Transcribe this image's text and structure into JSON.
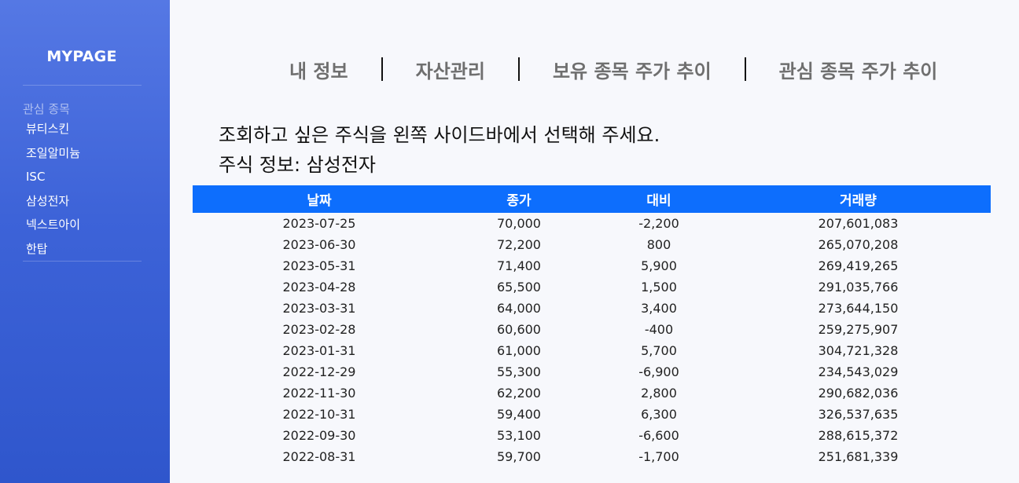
{
  "sidebar": {
    "brand": "MYPAGE",
    "section_label": "관심 종목",
    "items": [
      {
        "label": "뷰티스킨"
      },
      {
        "label": "조일알미늄"
      },
      {
        "label": "ISC"
      },
      {
        "label": "삼성전자"
      },
      {
        "label": "넥스트아이"
      },
      {
        "label": "한탑"
      }
    ]
  },
  "nav": {
    "items": [
      {
        "label": "내 정보"
      },
      {
        "label": "자산관리"
      },
      {
        "label": "보유 종목 주가 추이"
      },
      {
        "label": "관심 종목 주가 추이"
      }
    ],
    "separator": "|"
  },
  "main": {
    "instruction": "조회하고 싶은 주식을 왼쪽 사이드바에서 선택해 주세요.",
    "stock_info": "주식 정보: 삼성전자"
  },
  "table": {
    "headers": [
      "날짜",
      "종가",
      "대비",
      "거래량"
    ],
    "rows": [
      [
        "2023-07-25",
        "70,000",
        "-2,200",
        "207,601,083"
      ],
      [
        "2023-06-30",
        "72,200",
        "800",
        "265,070,208"
      ],
      [
        "2023-05-31",
        "71,400",
        "5,900",
        "269,419,265"
      ],
      [
        "2023-04-28",
        "65,500",
        "1,500",
        "291,035,766"
      ],
      [
        "2023-03-31",
        "64,000",
        "3,400",
        "273,644,150"
      ],
      [
        "2023-02-28",
        "60,600",
        "-400",
        "259,275,907"
      ],
      [
        "2023-01-31",
        "61,000",
        "5,700",
        "304,721,328"
      ],
      [
        "2022-12-29",
        "55,300",
        "-6,900",
        "234,543,029"
      ],
      [
        "2022-11-30",
        "62,200",
        "2,800",
        "290,682,036"
      ],
      [
        "2022-10-31",
        "59,400",
        "6,300",
        "326,537,635"
      ],
      [
        "2022-09-30",
        "53,100",
        "-6,600",
        "288,615,372"
      ],
      [
        "2022-08-31",
        "59,700",
        "-1,700",
        "251,681,339"
      ]
    ]
  },
  "colors": {
    "sidebar_top": "#5578e4",
    "sidebar_bottom": "#2f56cc",
    "table_header": "#0d6efd",
    "page_background": "#f7f8fc"
  }
}
